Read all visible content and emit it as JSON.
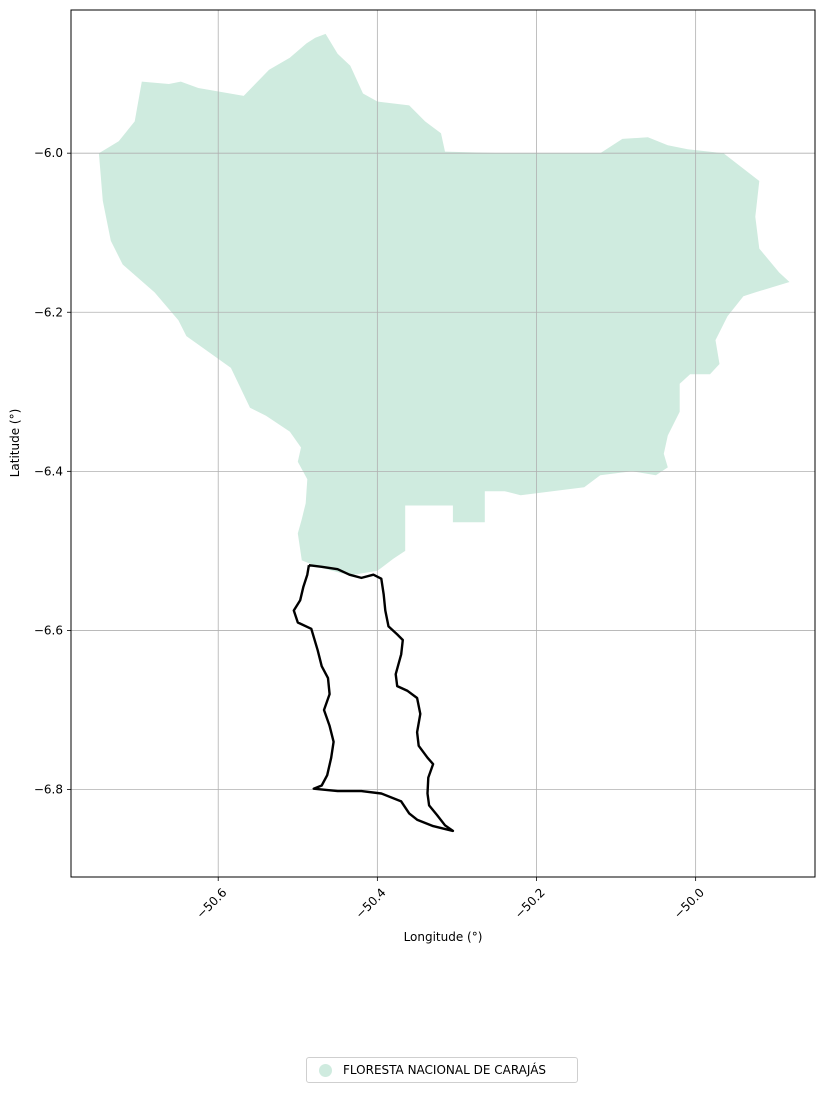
{
  "map": {
    "xlabel": "Longitude (°)",
    "ylabel": "Latitude (°)",
    "xlim": [
      -50.785,
      -49.85
    ],
    "ylim": [
      -6.91,
      -5.82
    ],
    "x_ticks": [
      -50.6,
      -50.4,
      -50.2,
      -50.0
    ],
    "x_tick_labels": [
      "−50.6",
      "−50.4",
      "−50.2",
      "−50.0"
    ],
    "y_ticks": [
      -6.0,
      -6.2,
      -6.4,
      -6.6,
      -6.8
    ],
    "y_tick_labels": [
      "−6.0",
      "−6.2",
      "−6.4",
      "−6.6",
      "−6.8"
    ],
    "grid": true,
    "legend_position": "bottom-center",
    "colors": {
      "region_fill": "#cfebdf",
      "outline": "#000000",
      "grid": "#b0b0b0"
    }
  },
  "legend": {
    "items": [
      {
        "label": "FLORESTA NACIONAL DE CARAJÁS",
        "color": "#cfebdf"
      }
    ]
  },
  "chart_data": {
    "type": "map",
    "layers": [
      {
        "name": "FLORESTA NACIONAL DE CARAJÁS",
        "kind": "filled-polygon",
        "coordinates": [
          [
            -50.696,
            -5.91
          ],
          [
            -50.662,
            -5.913
          ],
          [
            -50.647,
            -5.91
          ],
          [
            -50.625,
            -5.918
          ],
          [
            -50.568,
            -5.928
          ],
          [
            -50.536,
            -5.895
          ],
          [
            -50.51,
            -5.88
          ],
          [
            -50.489,
            -5.862
          ],
          [
            -50.478,
            -5.855
          ],
          [
            -50.465,
            -5.85
          ],
          [
            -50.45,
            -5.875
          ],
          [
            -50.434,
            -5.89
          ],
          [
            -50.418,
            -5.925
          ],
          [
            -50.4,
            -5.935
          ],
          [
            -50.36,
            -5.94
          ],
          [
            -50.34,
            -5.96
          ],
          [
            -50.32,
            -5.975
          ],
          [
            -50.315,
            -5.998
          ],
          [
            -50.24,
            -6.0
          ],
          [
            -50.12,
            -6.0
          ],
          [
            -50.092,
            -5.982
          ],
          [
            -50.06,
            -5.98
          ],
          [
            -50.035,
            -5.99
          ],
          [
            -50.01,
            -5.995
          ],
          [
            -49.965,
            -6.0
          ],
          [
            -49.92,
            -6.035
          ],
          [
            -49.925,
            -6.08
          ],
          [
            -49.92,
            -6.12
          ],
          [
            -49.895,
            -6.15
          ],
          [
            -49.882,
            -6.162
          ],
          [
            -49.925,
            -6.175
          ],
          [
            -49.94,
            -6.18
          ],
          [
            -49.96,
            -6.205
          ],
          [
            -49.975,
            -6.235
          ],
          [
            -49.97,
            -6.265
          ],
          [
            -49.982,
            -6.278
          ],
          [
            -50.007,
            -6.278
          ],
          [
            -50.02,
            -6.29
          ],
          [
            -50.02,
            -6.325
          ],
          [
            -50.035,
            -6.355
          ],
          [
            -50.04,
            -6.378
          ],
          [
            -50.035,
            -6.395
          ],
          [
            -50.05,
            -6.405
          ],
          [
            -50.08,
            -6.4
          ],
          [
            -50.12,
            -6.405
          ],
          [
            -50.14,
            -6.42
          ],
          [
            -50.18,
            -6.425
          ],
          [
            -50.22,
            -6.43
          ],
          [
            -50.24,
            -6.425
          ],
          [
            -50.265,
            -6.425
          ],
          [
            -50.265,
            -6.464
          ],
          [
            -50.305,
            -6.464
          ],
          [
            -50.305,
            -6.443
          ],
          [
            -50.365,
            -6.443
          ],
          [
            -50.365,
            -6.5
          ],
          [
            -50.38,
            -6.51
          ],
          [
            -50.4,
            -6.525
          ],
          [
            -50.43,
            -6.53
          ],
          [
            -50.445,
            -6.528
          ],
          [
            -50.475,
            -6.52
          ],
          [
            -50.495,
            -6.512
          ],
          [
            -50.5,
            -6.478
          ],
          [
            -50.495,
            -6.46
          ],
          [
            -50.49,
            -6.44
          ],
          [
            -50.488,
            -6.41
          ],
          [
            -50.5,
            -6.388
          ],
          [
            -50.496,
            -6.37
          ],
          [
            -50.51,
            -6.35
          ],
          [
            -50.54,
            -6.33
          ],
          [
            -50.56,
            -6.32
          ],
          [
            -50.584,
            -6.27
          ],
          [
            -50.64,
            -6.23
          ],
          [
            -50.65,
            -6.21
          ],
          [
            -50.68,
            -6.175
          ],
          [
            -50.72,
            -6.14
          ],
          [
            -50.735,
            -6.11
          ],
          [
            -50.745,
            -6.06
          ],
          [
            -50.75,
            -6.0
          ],
          [
            -50.725,
            -5.985
          ],
          [
            -50.705,
            -5.96
          ]
        ]
      },
      {
        "name": "outline",
        "kind": "line",
        "coordinates": [
          [
            -50.486,
            -6.518
          ],
          [
            -50.47,
            -6.52
          ],
          [
            -50.45,
            -6.523
          ],
          [
            -50.435,
            -6.53
          ],
          [
            -50.42,
            -6.534
          ],
          [
            -50.405,
            -6.53
          ],
          [
            -50.395,
            -6.535
          ],
          [
            -50.392,
            -6.555
          ],
          [
            -50.39,
            -6.575
          ],
          [
            -50.386,
            -6.595
          ],
          [
            -50.375,
            -6.605
          ],
          [
            -50.368,
            -6.612
          ],
          [
            -50.37,
            -6.63
          ],
          [
            -50.377,
            -6.655
          ],
          [
            -50.375,
            -6.67
          ],
          [
            -50.362,
            -6.676
          ],
          [
            -50.35,
            -6.685
          ],
          [
            -50.346,
            -6.705
          ],
          [
            -50.35,
            -6.728
          ],
          [
            -50.348,
            -6.745
          ],
          [
            -50.337,
            -6.76
          ],
          [
            -50.33,
            -6.768
          ],
          [
            -50.336,
            -6.785
          ],
          [
            -50.337,
            -6.805
          ],
          [
            -50.335,
            -6.82
          ],
          [
            -50.325,
            -6.832
          ],
          [
            -50.315,
            -6.845
          ],
          [
            -50.305,
            -6.852
          ],
          [
            -50.33,
            -6.846
          ],
          [
            -50.35,
            -6.838
          ],
          [
            -50.36,
            -6.83
          ],
          [
            -50.37,
            -6.815
          ],
          [
            -50.395,
            -6.805
          ],
          [
            -50.42,
            -6.802
          ],
          [
            -50.45,
            -6.802
          ],
          [
            -50.48,
            -6.799
          ],
          [
            -50.47,
            -6.795
          ],
          [
            -50.463,
            -6.782
          ],
          [
            -50.458,
            -6.76
          ],
          [
            -50.455,
            -6.74
          ],
          [
            -50.46,
            -6.72
          ],
          [
            -50.467,
            -6.7
          ],
          [
            -50.46,
            -6.68
          ],
          [
            -50.462,
            -6.66
          ],
          [
            -50.47,
            -6.645
          ],
          [
            -50.475,
            -6.625
          ],
          [
            -50.483,
            -6.598
          ],
          [
            -50.5,
            -6.59
          ],
          [
            -50.505,
            -6.575
          ],
          [
            -50.497,
            -6.562
          ],
          [
            -50.493,
            -6.545
          ],
          [
            -50.488,
            -6.53
          ],
          [
            -50.486,
            -6.518
          ]
        ]
      }
    ],
    "xlabel": "Longitude (°)",
    "ylabel": "Latitude (°)",
    "xlim": [
      -50.785,
      -49.85
    ],
    "ylim": [
      -6.91,
      -5.82
    ],
    "grid": true
  }
}
